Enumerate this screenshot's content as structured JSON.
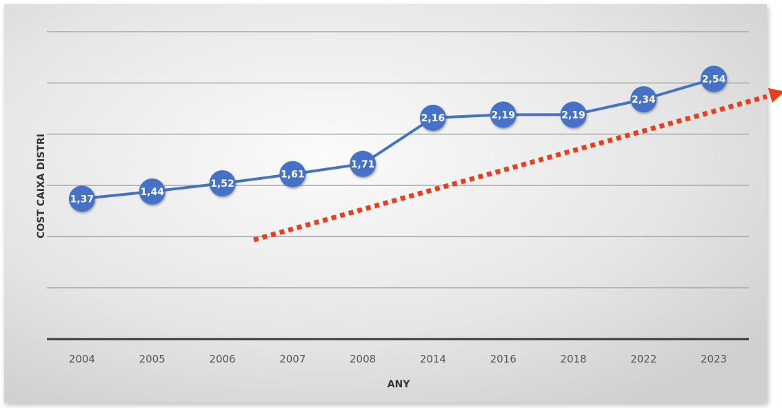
{
  "chart_data": {
    "type": "line",
    "title": "",
    "xlabel": "ANY",
    "ylabel": "COST CAIXA DISTRI",
    "categories": [
      "2004",
      "2005",
      "2006",
      "2007",
      "2008",
      "2014",
      "2016",
      "2018",
      "2022",
      "2023"
    ],
    "series": [
      {
        "values": [
          1.37,
          1.44,
          1.52,
          1.61,
          1.71,
          2.16,
          2.19,
          2.19,
          2.34,
          2.54
        ],
        "data_labels": [
          "1,37",
          "1,44",
          "1,52",
          "1,61",
          "1,71",
          "2,16",
          "2,19",
          "2,19",
          "2,34",
          "2,54"
        ],
        "color": "#4472C4"
      }
    ],
    "ylim": [
      0,
      3
    ],
    "y_tick_labels_visible": false,
    "grid": true,
    "legend": "none",
    "annotations": [
      {
        "type": "trend-arrow",
        "style": "dotted",
        "color": "#E8401C",
        "direction": "up-right"
      }
    ]
  },
  "colors": {
    "background_light": "#fafafa",
    "background_dark": "#d2d2d2",
    "gridline": "#a8a8a8",
    "axis_line": "#3a3a3a"
  }
}
